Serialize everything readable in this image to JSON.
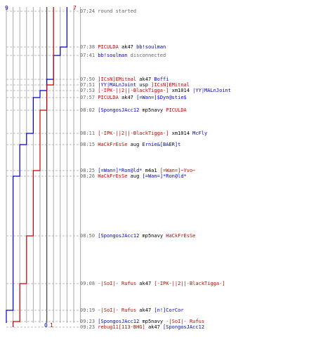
{
  "colors": {
    "blue": "#0000cc",
    "red": "#cc0000",
    "black": "#000000",
    "gray": "#666666",
    "grid": "#aaaaaa",
    "dash": "#bbbbbb"
  },
  "scores": {
    "blue_start": "9",
    "red_start": "7",
    "blue_end": "0",
    "red_end": "1"
  },
  "events": [
    {
      "time": "07:24",
      "parts": [
        {
          "t": "round started",
          "c": "gray"
        }
      ]
    },
    {
      "time": "07:38",
      "parts": [
        {
          "t": "PICULDA",
          "c": "red"
        },
        {
          "t": " ak47 ",
          "c": "black"
        },
        {
          "t": "bb!soulman",
          "c": "blue"
        }
      ]
    },
    {
      "time": "07:41",
      "parts": [
        {
          "t": "bb!soulman",
          "c": "blue"
        },
        {
          "t": " disconnected",
          "c": "gray"
        }
      ]
    },
    {
      "time": "07:50",
      "parts": [
        {
          "t": "]ICsN]EMitnal",
          "c": "red"
        },
        {
          "t": " ak47 ",
          "c": "black"
        },
        {
          "t": "Boffi",
          "c": "blue"
        }
      ]
    },
    {
      "time": "07:51",
      "parts": [
        {
          "t": "|YY|MALnJoint",
          "c": "blue"
        },
        {
          "t": " usp ",
          "c": "black"
        },
        {
          "t": "]ICsN]EMitnal",
          "c": "red"
        }
      ]
    },
    {
      "time": "07:53",
      "parts": [
        {
          "t": "[-IPK-||2||-BlackTigga-]",
          "c": "red"
        },
        {
          "t": " xm1014 ",
          "c": "black"
        },
        {
          "t": "|YY|MALnJoint",
          "c": "blue"
        }
      ]
    },
    {
      "time": "07:57",
      "parts": [
        {
          "t": "PICULDA",
          "c": "red"
        },
        {
          "t": " ak47 ",
          "c": "black"
        },
        {
          "t": "[=Wan=]$Dyn@stie$",
          "c": "blue"
        }
      ]
    },
    {
      "time": "08:02",
      "parts": [
        {
          "t": "[SpongosJAcc12",
          "c": "blue"
        },
        {
          "t": " mp5navy ",
          "c": "black"
        },
        {
          "t": "PICULDA",
          "c": "red"
        }
      ]
    },
    {
      "time": "08:11",
      "parts": [
        {
          "t": "[-IPK-||2||-BlackTigga-]",
          "c": "red"
        },
        {
          "t": " xm1014 ",
          "c": "black"
        },
        {
          "t": "McFly",
          "c": "blue"
        }
      ]
    },
    {
      "time": "08:15",
      "parts": [
        {
          "t": "HaCkFrEsSe",
          "c": "red"
        },
        {
          "t": " aug ",
          "c": "black"
        },
        {
          "t": "Ernie&[BAER]t",
          "c": "blue"
        }
      ]
    },
    {
      "time": "08:25",
      "parts": [
        {
          "t": "[=Wan=]*Ron@ld*",
          "c": "blue"
        },
        {
          "t": " m4a1 ",
          "c": "black"
        },
        {
          "t": "[=Wan=]~Yvo~",
          "c": "red"
        }
      ]
    },
    {
      "time": "08:26",
      "parts": [
        {
          "t": "HaCkFrEsSe",
          "c": "red"
        },
        {
          "t": " aug ",
          "c": "black"
        },
        {
          "t": "[=Wan=]*Ron@ld*",
          "c": "blue"
        }
      ]
    },
    {
      "time": "08:50",
      "parts": [
        {
          "t": "[SpongosJAcc12",
          "c": "blue"
        },
        {
          "t": " mp5navy ",
          "c": "black"
        },
        {
          "t": "HaCkFrEsSe",
          "c": "red"
        }
      ]
    },
    {
      "time": "09:08",
      "parts": [
        {
          "t": "-|SoI|- Rufus",
          "c": "red"
        },
        {
          "t": " ak47 ",
          "c": "black"
        },
        {
          "t": "[-IPK-||2||-BlackTigga-]",
          "c": "red"
        }
      ]
    },
    {
      "time": "09:19",
      "parts": [
        {
          "t": "-|SoI|- Rufus",
          "c": "red"
        },
        {
          "t": " ak47 ",
          "c": "black"
        },
        {
          "t": "[n!]CorCor",
          "c": "blue"
        }
      ]
    },
    {
      "time": "09:23",
      "parts": [
        {
          "t": "[SpongosJAcc12",
          "c": "blue"
        },
        {
          "t": " mp5navy ",
          "c": "black"
        },
        {
          "t": "-|SoI|- Rufus",
          "c": "red"
        }
      ]
    },
    {
      "time": "09:23",
      "parts": [
        {
          "t": "rebug11[113-BHG]",
          "c": "red"
        },
        {
          "t": " ak47 ",
          "c": "black"
        },
        {
          "t": "[SpongosJAcc12",
          "c": "blue"
        }
      ]
    }
  ],
  "chart_data": {
    "type": "line",
    "title": "",
    "xlabel": "",
    "ylabel": "",
    "xlim": [
      0,
      10
    ],
    "series": [
      {
        "color": "#0000cc",
        "values": [
          9,
          8,
          7,
          6,
          5,
          4,
          3,
          2,
          1,
          0
        ]
      },
      {
        "color": "#cc0000",
        "values": [
          7,
          6,
          5,
          4,
          3,
          2,
          1
        ]
      }
    ]
  }
}
